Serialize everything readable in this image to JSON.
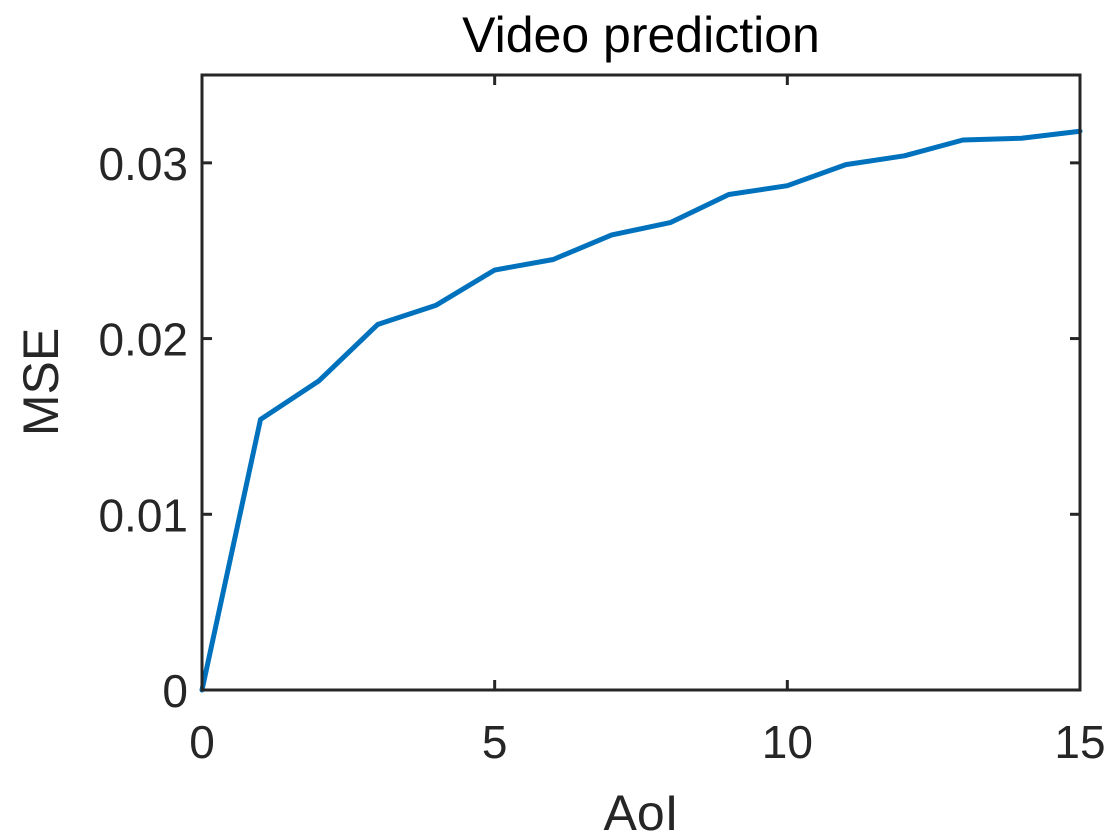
{
  "chart_data": {
    "type": "line",
    "title": "Video prediction",
    "xlabel": "AoI",
    "ylabel": "MSE",
    "xlim": [
      0,
      15
    ],
    "ylim": [
      0,
      0.035
    ],
    "xticks": [
      0,
      5,
      10,
      15
    ],
    "xtick_labels": [
      "0",
      "5",
      "10",
      "15"
    ],
    "yticks": [
      0,
      0.01,
      0.02,
      0.03
    ],
    "ytick_labels": [
      "0",
      "0.01",
      "0.02",
      "0.03"
    ],
    "grid": false,
    "series": [
      {
        "color": "#0072BD",
        "x": [
          0,
          1,
          2,
          3,
          4,
          5,
          6,
          7,
          8,
          9,
          10,
          11,
          12,
          13,
          14,
          15
        ],
        "y": [
          0,
          0.0154,
          0.0176,
          0.0208,
          0.0219,
          0.0239,
          0.0245,
          0.0259,
          0.0266,
          0.0282,
          0.0287,
          0.0299,
          0.0304,
          0.0313,
          0.0314,
          0.0318
        ]
      }
    ],
    "axis_color": "#262626",
    "background": "#ffffff"
  }
}
